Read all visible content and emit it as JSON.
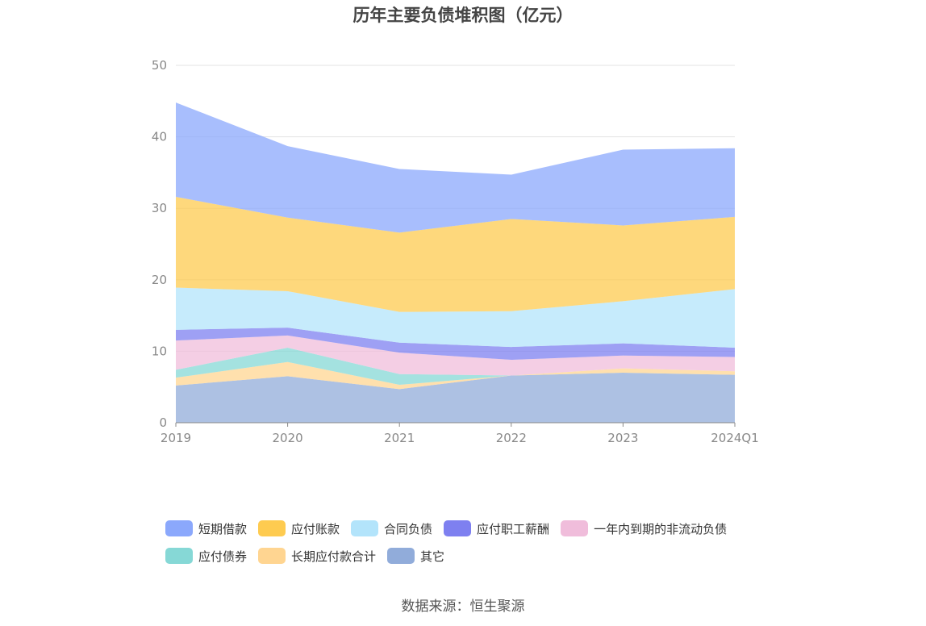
{
  "title": "历年主要负债堆积图（亿元）",
  "source": "数据来源：恒生聚源",
  "chart_data": {
    "type": "area",
    "stacked": true,
    "categories": [
      "2019",
      "2020",
      "2021",
      "2022",
      "2023",
      "2024Q1"
    ],
    "ylim": [
      0,
      50
    ],
    "yticks": [
      0,
      10,
      20,
      30,
      40,
      50
    ],
    "grid": true,
    "legend_position": "bottom",
    "series": [
      {
        "name": "其它",
        "color": "#91acda",
        "values": [
          5.2,
          6.5,
          4.7,
          6.6,
          7.0,
          6.7
        ]
      },
      {
        "name": "长期应付款合计",
        "color": "#ffd591",
        "values": [
          1.1,
          2.0,
          0.6,
          0.0,
          0.6,
          0.5
        ]
      },
      {
        "name": "应付债券",
        "color": "#86d8d6",
        "values": [
          1.1,
          2.0,
          1.5,
          0.0,
          0.0,
          0.0
        ]
      },
      {
        "name": "一年内到期的非流动负债",
        "color": "#f0bddb",
        "values": [
          4.1,
          1.7,
          3.0,
          2.2,
          1.8,
          2.0
        ]
      },
      {
        "name": "应付职工薪酬",
        "color": "#7e80f0",
        "values": [
          1.5,
          1.1,
          1.4,
          1.8,
          1.7,
          1.3
        ]
      },
      {
        "name": "合同负债",
        "color": "#b3e4fb",
        "values": [
          5.9,
          5.1,
          4.3,
          5.0,
          5.9,
          8.2
        ]
      },
      {
        "name": "应付账款",
        "color": "#fecb50",
        "values": [
          12.7,
          10.3,
          11.1,
          12.9,
          10.6,
          10.1
        ]
      },
      {
        "name": "短期借款",
        "color": "#8ba8fc",
        "values": [
          13.2,
          10.0,
          8.9,
          6.2,
          10.6,
          9.6
        ]
      }
    ]
  },
  "legend": {
    "rows": [
      [
        {
          "label": "短期借款",
          "color": "#8ba8fc"
        },
        {
          "label": "应付账款",
          "color": "#fecb50"
        },
        {
          "label": "合同负债",
          "color": "#b3e4fb"
        },
        {
          "label": "应付职工薪酬",
          "color": "#7e80f0"
        },
        {
          "label": "一年内到期的非流动负债",
          "color": "#f0bddb"
        }
      ],
      [
        {
          "label": "应付债券",
          "color": "#86d8d6"
        },
        {
          "label": "长期应付款合计",
          "color": "#ffd591"
        },
        {
          "label": "其它",
          "color": "#91acda"
        }
      ]
    ]
  }
}
